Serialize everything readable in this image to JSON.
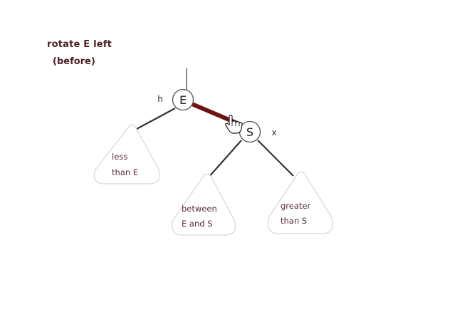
{
  "header": {
    "title": "rotate E left",
    "subtitle": "(before)"
  },
  "nodes": {
    "e": {
      "label": "E",
      "pointer": "h"
    },
    "s": {
      "label": "S",
      "pointer": "x"
    }
  },
  "subtrees": {
    "left": {
      "line1": "less",
      "line2": "than E"
    },
    "middle": {
      "line1": "between",
      "line2": "E and S"
    },
    "right": {
      "line1": "greater",
      "line2": "than S"
    }
  },
  "colors": {
    "title": "#4a1f26",
    "red_link": "#6b1414",
    "black_link": "#333333",
    "subtree_outline": "#cccccc",
    "subtree_text": "#5a2e35"
  },
  "icons": {
    "cursor": "hand-pointer-icon"
  }
}
